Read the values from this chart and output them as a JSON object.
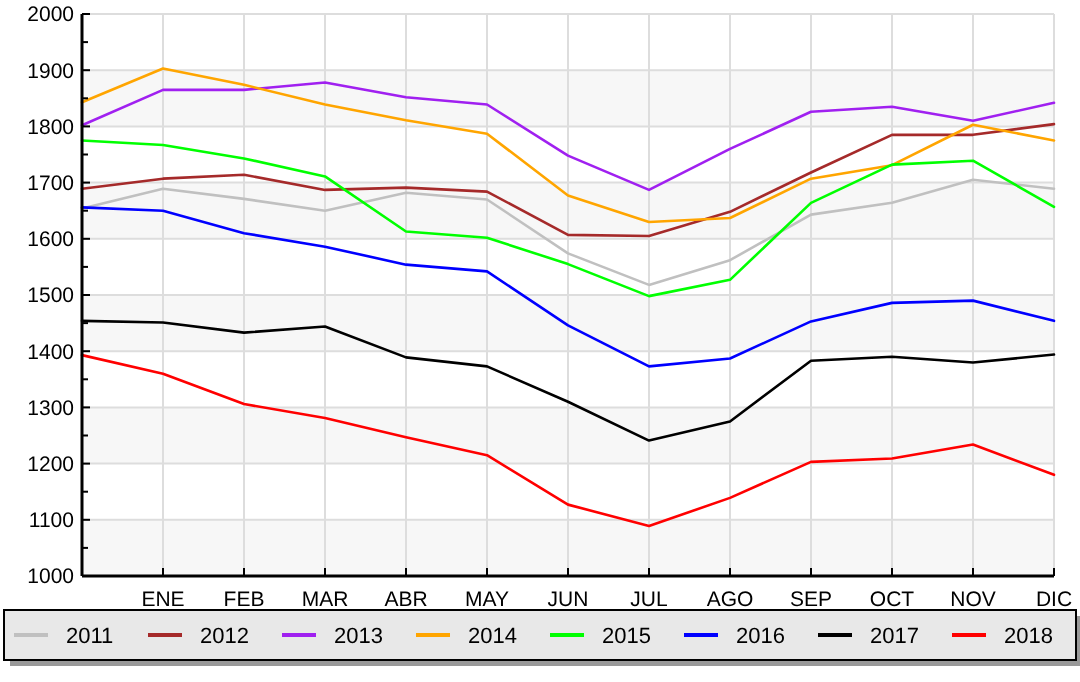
{
  "chart_data": {
    "type": "line",
    "categories": [
      null,
      "ENE",
      "FEB",
      "MAR",
      "ABR",
      "MAY",
      "JUN",
      "JUL",
      "AGO",
      "SEP",
      "OCT",
      "NOV",
      "DIC"
    ],
    "ylim": [
      1000,
      2000
    ],
    "yticks": [
      1000,
      1100,
      1200,
      1300,
      1400,
      1500,
      1600,
      1700,
      1800,
      1900,
      2000
    ],
    "grid": true,
    "legend": "bottom",
    "marker": "none",
    "series": [
      {
        "name": "2011",
        "color": "#c0c0c0",
        "values": [
          1654,
          1689,
          1671,
          1650,
          1682,
          1670,
          1574,
          1518,
          1562,
          1643,
          1664,
          1705,
          1689
        ]
      },
      {
        "name": "2012",
        "color": "#a52a2a",
        "values": [
          1689,
          1707,
          1714,
          1687,
          1691,
          1684,
          1607,
          1605,
          1648,
          1718,
          1785,
          1785,
          1804
        ]
      },
      {
        "name": "2013",
        "color": "#a020f0",
        "values": [
          1802,
          1865,
          1865,
          1878,
          1852,
          1839,
          1748,
          1687,
          1760,
          1826,
          1835,
          1810,
          1842
        ]
      },
      {
        "name": "2014",
        "color": "#ffa500",
        "values": [
          1843,
          1903,
          1874,
          1839,
          1811,
          1787,
          1677,
          1630,
          1637,
          1707,
          1731,
          1803,
          1775
        ]
      },
      {
        "name": "2015",
        "color": "#00ff00",
        "values": [
          1775,
          1767,
          1743,
          1711,
          1613,
          1602,
          1555,
          1498,
          1527,
          1664,
          1732,
          1739,
          1657
        ]
      },
      {
        "name": "2016",
        "color": "#0000ff",
        "values": [
          1656,
          1650,
          1610,
          1586,
          1554,
          1542,
          1446,
          1373,
          1387,
          1453,
          1486,
          1490,
          1454
        ]
      },
      {
        "name": "2017",
        "color": "#000000",
        "values": [
          1454,
          1451,
          1433,
          1444,
          1389,
          1373,
          1310,
          1241,
          1275,
          1383,
          1390,
          1380,
          1394
        ]
      },
      {
        "name": "2018",
        "color": "#ff0000",
        "values": [
          1393,
          1360,
          1306,
          1281,
          1247,
          1215,
          1127,
          1089,
          1139,
          1203,
          1209,
          1234,
          1180
        ]
      }
    ]
  }
}
